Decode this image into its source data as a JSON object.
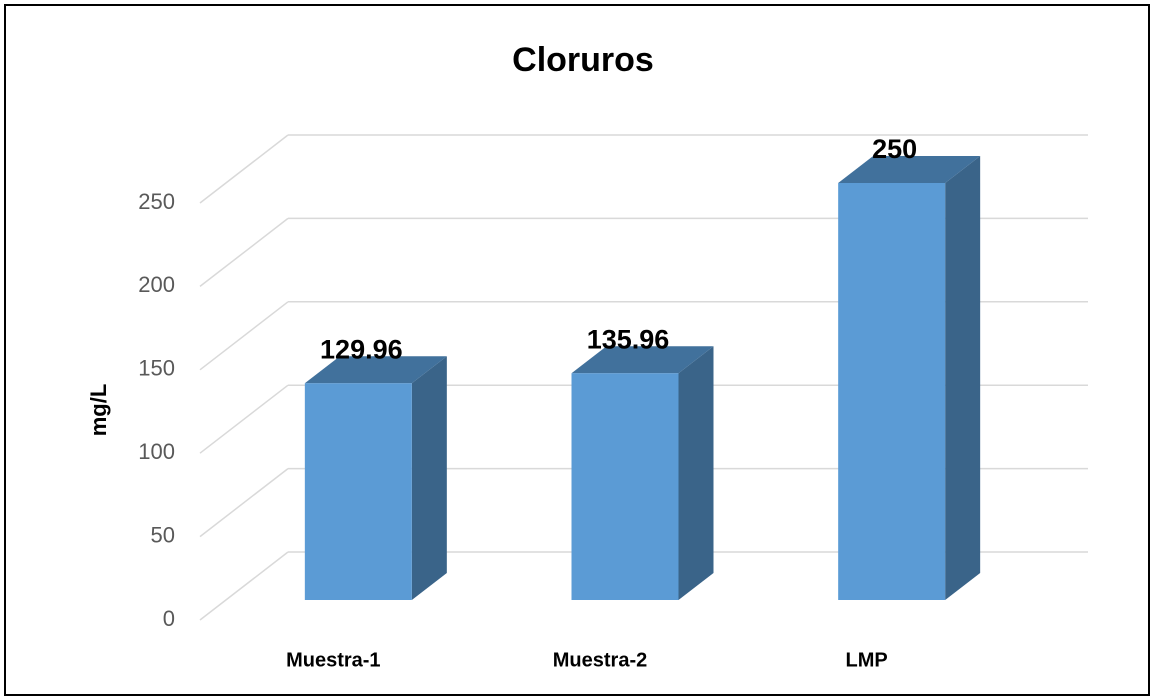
{
  "chart_data": {
    "type": "bar",
    "title": "Cloruros",
    "y_label": "mg/L",
    "categories": [
      "Muestra-1",
      "Muestra-2",
      "LMP"
    ],
    "values": [
      129.96,
      135.96,
      250
    ],
    "color": "#5b9bd5",
    "ylim": [
      0,
      250
    ],
    "yticks": [
      0,
      50,
      100,
      150,
      200,
      250
    ],
    "grid": true
  }
}
